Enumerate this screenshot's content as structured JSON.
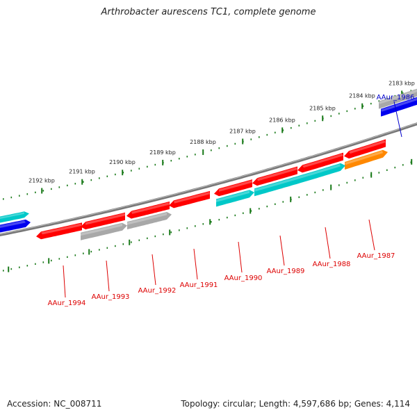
{
  "title": "Arthrobacter aurescens TC1, complete genome",
  "footer": {
    "accession": "Accession: NC_008711",
    "topology": "Topology: circular; Length: 4,597,686 bp; Genes: 4,114"
  },
  "colors": {
    "backbone": "#777777",
    "tick": "#1a7a1a",
    "red": "#ff0000",
    "cyan": "#00c8c8",
    "gray": "#a8a8a8",
    "blue": "#0000ee",
    "orange": "#ff8800",
    "label_red": "#dd0000",
    "label_blue": "#0000cc"
  },
  "scale": {
    "upper": [
      {
        "label": "2192 kbp"
      },
      {
        "label": "2191 kbp"
      },
      {
        "label": "2190 kbp"
      },
      {
        "label": "2189 kbp"
      },
      {
        "label": "2188 kbp"
      },
      {
        "label": "2187 kbp"
      },
      {
        "label": "2186 kbp"
      },
      {
        "label": "2185 kbp"
      },
      {
        "label": "2184 kbp"
      },
      {
        "label": "2183 kbp"
      }
    ]
  },
  "genes": [
    {
      "id": "AAur_1986",
      "label": "AAur_1986",
      "color": "blue"
    },
    {
      "id": "AAur_1987",
      "label": "AAur_1987",
      "color": "orange"
    },
    {
      "id": "AAur_1988",
      "label": "AAur_1988",
      "color": "red"
    },
    {
      "id": "AAur_1989",
      "label": "AAur_1989",
      "color": "red"
    },
    {
      "id": "AAur_1990",
      "label": "AAur_1990",
      "color": "red"
    },
    {
      "id": "AAur_1991",
      "label": "AAur_1991",
      "color": "red"
    },
    {
      "id": "AAur_1992",
      "label": "AAur_1992",
      "color": "red"
    },
    {
      "id": "AAur_1993",
      "label": "AAur_1993",
      "color": "red"
    },
    {
      "id": "AAur_1994",
      "label": "AAur_1994",
      "color": "red"
    }
  ]
}
